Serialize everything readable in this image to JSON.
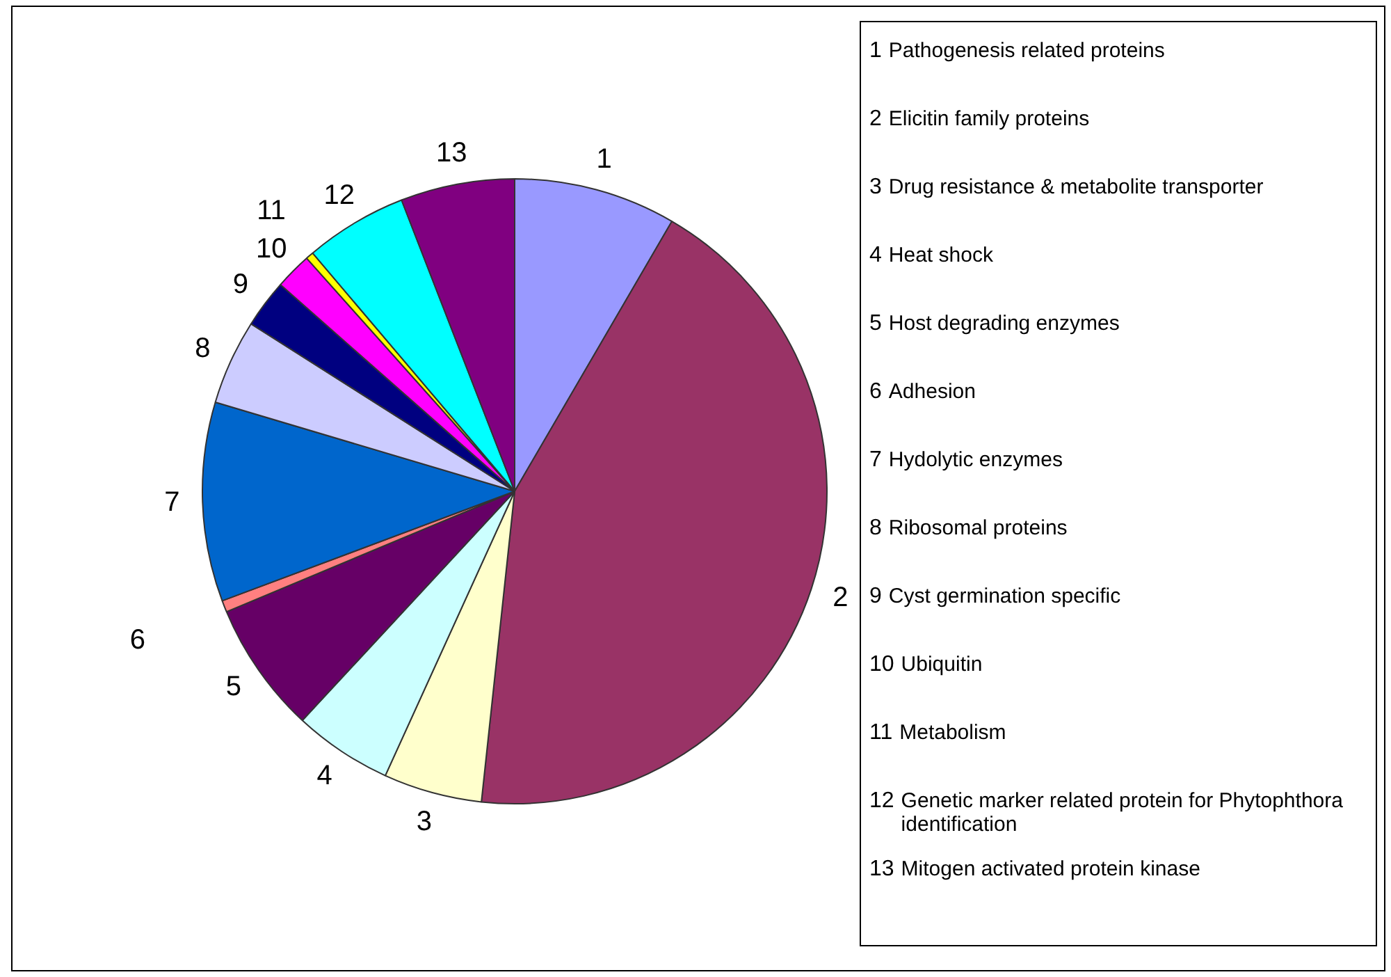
{
  "chart_data": {
    "type": "pie",
    "categories": [
      "1",
      "2",
      "3",
      "4",
      "5",
      "6",
      "7",
      "8",
      "9",
      "10",
      "11",
      "12",
      "13"
    ],
    "values": [
      8.4,
      43.3,
      5.1,
      5.1,
      6.8,
      0.6,
      10.3,
      4.4,
      2.5,
      1.9,
      0.4,
      5.3,
      5.9
    ],
    "colors": [
      "#9999ff",
      "#993366",
      "#ffffcc",
      "#ccffff",
      "#660066",
      "#ff8080",
      "#0066cc",
      "#ccccff",
      "#000080",
      "#ff00ff",
      "#ffff00",
      "#00ffff",
      "#800080"
    ],
    "annotations": [
      "Pathogenesis related proteins",
      "Elicitin family proteins",
      "Drug resistance & metabolite transporter",
      "Heat shock",
      "Host degrading enzymes",
      "Adhesion",
      "Hydolytic enzymes",
      "Ribosomal proteins",
      "Cyst germination specific",
      "Ubiquitin",
      "Metabolism",
      "Genetic marker related protein for Phytophthora identification",
      "Mitogen activated protein kinase"
    ]
  }
}
